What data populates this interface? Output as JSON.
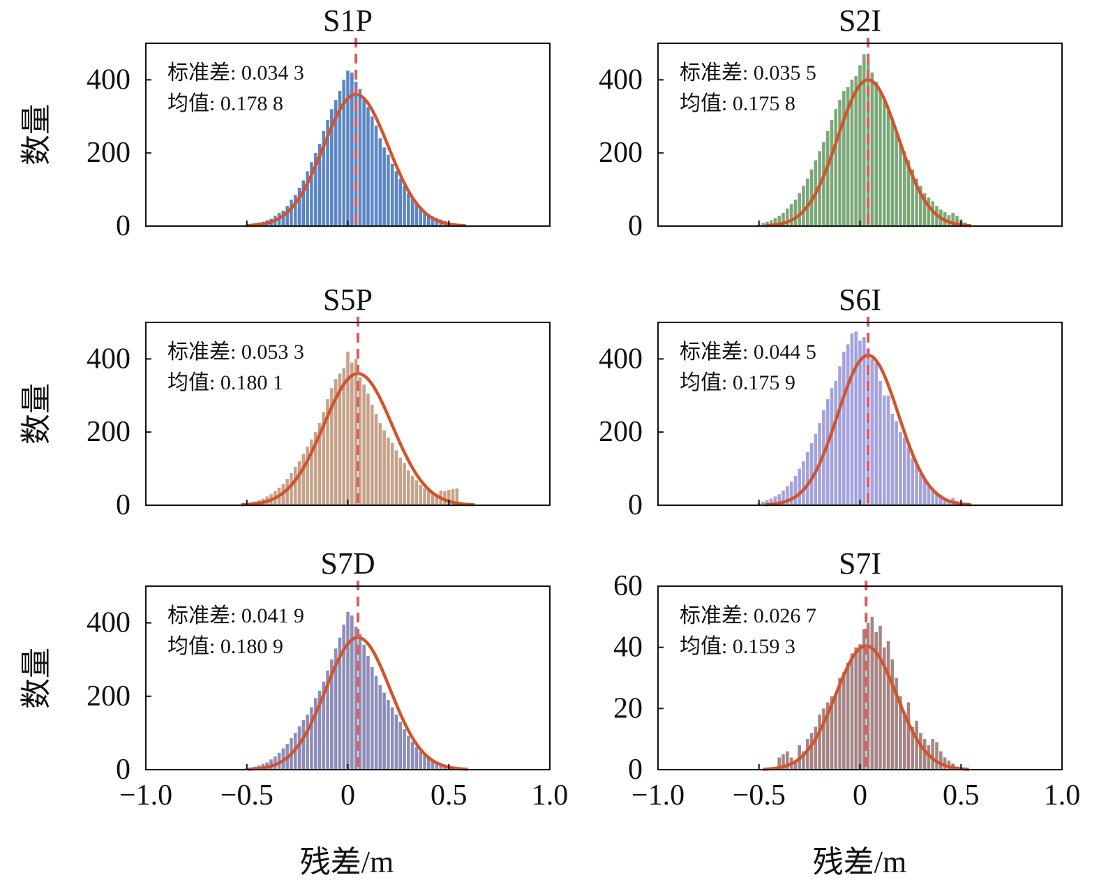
{
  "figure": {
    "ylabel": "数量",
    "xlabel": "残差/m"
  },
  "colors": {
    "fit_curve": "#d2542b",
    "mean_line": "#e05a5a",
    "axis": "#111111"
  },
  "chart_data": [
    {
      "type": "bar",
      "title": "S1P",
      "color": "#5b86c5",
      "xlim": [
        -1.0,
        1.0
      ],
      "ylim": [
        0,
        500
      ],
      "xticks": [
        "−1.0",
        "−0.5",
        "0",
        "0.5",
        "1.0"
      ],
      "yticks": [
        "0",
        "200",
        "400"
      ],
      "std_label": "标准差: 0.034 3",
      "mean_label": "均值: 0.178 8",
      "mean_x": 0.04,
      "fit": {
        "mu": 0.04,
        "sigma": 0.16,
        "peak": 360
      },
      "x": [
        -0.5,
        -0.48,
        -0.46,
        -0.44,
        -0.42,
        -0.4,
        -0.38,
        -0.36,
        -0.34,
        -0.32,
        -0.3,
        -0.28,
        -0.26,
        -0.24,
        -0.22,
        -0.2,
        -0.18,
        -0.16,
        -0.14,
        -0.12,
        -0.1,
        -0.08,
        -0.06,
        -0.04,
        -0.02,
        0,
        0.02,
        0.04,
        0.06,
        0.08,
        0.1,
        0.12,
        0.14,
        0.16,
        0.18,
        0.2,
        0.22,
        0.24,
        0.26,
        0.28,
        0.3,
        0.32,
        0.34,
        0.36,
        0.38,
        0.4,
        0.42,
        0.44,
        0.46,
        0.48,
        0.5,
        0.52,
        0.54
      ],
      "values": [
        3,
        6,
        8,
        10,
        12,
        16,
        20,
        28,
        36,
        42,
        55,
        72,
        85,
        105,
        125,
        150,
        175,
        200,
        225,
        260,
        290,
        320,
        345,
        370,
        400,
        425,
        420,
        395,
        375,
        345,
        325,
        300,
        275,
        240,
        215,
        195,
        170,
        150,
        130,
        110,
        90,
        75,
        62,
        50,
        40,
        32,
        26,
        22,
        18,
        14,
        10,
        6,
        3
      ]
    },
    {
      "type": "bar",
      "title": "S2I",
      "color": "#7ba878",
      "xlim": [
        -1.0,
        1.0
      ],
      "ylim": [
        0,
        500
      ],
      "xticks": [
        "−1.0",
        "−0.5",
        "0",
        "0.5",
        "1.0"
      ],
      "yticks": [
        "0",
        "200",
        "400"
      ],
      "std_label": "标准差: 0.035 5",
      "mean_label": "均值: 0.175 8",
      "mean_x": 0.04,
      "fit": {
        "mu": 0.04,
        "sigma": 0.15,
        "peak": 400
      },
      "x": [
        -0.5,
        -0.48,
        -0.46,
        -0.44,
        -0.42,
        -0.4,
        -0.38,
        -0.36,
        -0.34,
        -0.32,
        -0.3,
        -0.28,
        -0.26,
        -0.24,
        -0.22,
        -0.2,
        -0.18,
        -0.16,
        -0.14,
        -0.12,
        -0.1,
        -0.08,
        -0.06,
        -0.04,
        -0.02,
        0,
        0.02,
        0.04,
        0.06,
        0.08,
        0.1,
        0.12,
        0.14,
        0.16,
        0.18,
        0.2,
        0.22,
        0.24,
        0.26,
        0.28,
        0.3,
        0.32,
        0.34,
        0.36,
        0.38,
        0.4,
        0.42,
        0.44,
        0.46,
        0.48,
        0.5,
        0.52,
        0.54
      ],
      "values": [
        4,
        8,
        12,
        16,
        22,
        28,
        36,
        48,
        60,
        72,
        90,
        110,
        130,
        155,
        180,
        205,
        230,
        260,
        290,
        320,
        345,
        370,
        380,
        400,
        410,
        440,
        470,
        450,
        420,
        395,
        370,
        345,
        315,
        290,
        260,
        230,
        205,
        180,
        155,
        130,
        110,
        90,
        78,
        68,
        55,
        45,
        38,
        30,
        36,
        28,
        18,
        10,
        5
      ]
    },
    {
      "type": "bar",
      "title": "S5P",
      "color": "#c5a28a",
      "xlim": [
        -1.0,
        1.0
      ],
      "ylim": [
        0,
        500
      ],
      "xticks": [
        "−1.0",
        "−0.5",
        "0",
        "0.5",
        "1.0"
      ],
      "yticks": [
        "0",
        "200",
        "400"
      ],
      "std_label": "标准差: 0.053 3",
      "mean_label": "均值: 0.180 1",
      "mean_x": 0.05,
      "fit": {
        "mu": 0.05,
        "sigma": 0.17,
        "peak": 360
      },
      "x": [
        -0.5,
        -0.48,
        -0.46,
        -0.44,
        -0.42,
        -0.4,
        -0.38,
        -0.36,
        -0.34,
        -0.32,
        -0.3,
        -0.28,
        -0.26,
        -0.24,
        -0.22,
        -0.2,
        -0.18,
        -0.16,
        -0.14,
        -0.12,
        -0.1,
        -0.08,
        -0.06,
        -0.04,
        -0.02,
        0,
        0.02,
        0.04,
        0.06,
        0.08,
        0.1,
        0.12,
        0.14,
        0.16,
        0.18,
        0.2,
        0.22,
        0.24,
        0.26,
        0.28,
        0.3,
        0.32,
        0.34,
        0.36,
        0.38,
        0.4,
        0.42,
        0.44,
        0.46,
        0.48,
        0.5,
        0.52,
        0.54
      ],
      "values": [
        4,
        8,
        10,
        14,
        18,
        24,
        30,
        38,
        48,
        58,
        72,
        88,
        105,
        120,
        140,
        160,
        180,
        200,
        225,
        255,
        290,
        320,
        345,
        360,
        375,
        420,
        390,
        400,
        350,
        330,
        305,
        275,
        250,
        225,
        205,
        185,
        170,
        150,
        130,
        115,
        95,
        80,
        68,
        55,
        46,
        40,
        34,
        30,
        40,
        38,
        42,
        44,
        46
      ]
    },
    {
      "type": "bar",
      "title": "S6I",
      "color": "#a3a2dd",
      "xlim": [
        -1.0,
        1.0
      ],
      "ylim": [
        0,
        500
      ],
      "xticks": [
        "−1.0",
        "−0.5",
        "0",
        "0.5",
        "1.0"
      ],
      "yticks": [
        "0",
        "200",
        "400"
      ],
      "std_label": "标准差: 0.044 5",
      "mean_label": "均值: 0.175 9",
      "mean_x": 0.04,
      "fit": {
        "mu": 0.04,
        "sigma": 0.15,
        "peak": 410
      },
      "x": [
        -0.5,
        -0.48,
        -0.46,
        -0.44,
        -0.42,
        -0.4,
        -0.38,
        -0.36,
        -0.34,
        -0.32,
        -0.3,
        -0.28,
        -0.26,
        -0.24,
        -0.22,
        -0.2,
        -0.18,
        -0.16,
        -0.14,
        -0.12,
        -0.1,
        -0.08,
        -0.06,
        -0.04,
        -0.02,
        0,
        0.02,
        0.04,
        0.06,
        0.08,
        0.1,
        0.12,
        0.14,
        0.16,
        0.18,
        0.2,
        0.22,
        0.24,
        0.26,
        0.28,
        0.3,
        0.32,
        0.34,
        0.36,
        0.38,
        0.4,
        0.42,
        0.44,
        0.46,
        0.48,
        0.5,
        0.52,
        0.54
      ],
      "values": [
        6,
        10,
        14,
        18,
        24,
        30,
        40,
        52,
        64,
        80,
        100,
        120,
        145,
        170,
        195,
        225,
        260,
        290,
        320,
        340,
        380,
        420,
        440,
        470,
        475,
        450,
        460,
        430,
        400,
        390,
        340,
        300,
        300,
        250,
        230,
        200,
        185,
        160,
        130,
        110,
        85,
        70,
        55,
        45,
        35,
        28,
        18,
        14,
        20,
        12,
        8,
        5,
        3
      ]
    },
    {
      "type": "bar",
      "title": "S7D",
      "color": "#8c8db8",
      "xlim": [
        -1.0,
        1.0
      ],
      "ylim": [
        0,
        500
      ],
      "xticks": [
        "−1.0",
        "−0.5",
        "0",
        "0.5",
        "1.0"
      ],
      "yticks": [
        "0",
        "200",
        "400"
      ],
      "std_label": "标准差: 0.041 9",
      "mean_label": "均值: 0.180 9",
      "mean_x": 0.05,
      "fit": {
        "mu": 0.05,
        "sigma": 0.16,
        "peak": 360
      },
      "x": [
        -0.5,
        -0.48,
        -0.46,
        -0.44,
        -0.42,
        -0.4,
        -0.38,
        -0.36,
        -0.34,
        -0.32,
        -0.3,
        -0.28,
        -0.26,
        -0.24,
        -0.22,
        -0.2,
        -0.18,
        -0.16,
        -0.14,
        -0.12,
        -0.1,
        -0.08,
        -0.06,
        -0.04,
        -0.02,
        0,
        0.02,
        0.04,
        0.06,
        0.08,
        0.1,
        0.12,
        0.14,
        0.16,
        0.18,
        0.2,
        0.22,
        0.24,
        0.26,
        0.28,
        0.3,
        0.32,
        0.34,
        0.36,
        0.38,
        0.4,
        0.42,
        0.44,
        0.46,
        0.48,
        0.5,
        0.52,
        0.54
      ],
      "values": [
        4,
        6,
        8,
        12,
        16,
        20,
        28,
        36,
        46,
        58,
        70,
        86,
        100,
        118,
        135,
        150,
        170,
        195,
        215,
        240,
        270,
        300,
        330,
        360,
        395,
        430,
        420,
        390,
        370,
        340,
        310,
        280,
        255,
        230,
        210,
        190,
        170,
        150,
        130,
        110,
        92,
        76,
        62,
        50,
        40,
        32,
        26,
        22,
        18,
        14,
        10,
        6,
        4
      ]
    },
    {
      "type": "bar",
      "title": "S7I",
      "color": "#a68484",
      "xlim": [
        -1.0,
        1.0
      ],
      "ylim": [
        0,
        60
      ],
      "xticks": [
        "−1.0",
        "−0.5",
        "0",
        "0.5",
        "1.0"
      ],
      "yticks": [
        "0",
        "20",
        "40",
        "60"
      ],
      "std_label": "标准差: 0.026 7",
      "mean_label": "均值: 0.159 3",
      "mean_x": 0.03,
      "fit": {
        "mu": 0.03,
        "sigma": 0.15,
        "peak": 40.5
      },
      "x": [
        -0.4,
        -0.38,
        -0.36,
        -0.34,
        -0.32,
        -0.3,
        -0.28,
        -0.26,
        -0.24,
        -0.22,
        -0.2,
        -0.18,
        -0.16,
        -0.14,
        -0.12,
        -0.1,
        -0.08,
        -0.06,
        -0.04,
        -0.02,
        0,
        0.02,
        0.04,
        0.06,
        0.08,
        0.1,
        0.12,
        0.14,
        0.16,
        0.18,
        0.2,
        0.22,
        0.24,
        0.26,
        0.28,
        0.3,
        0.32,
        0.34,
        0.36,
        0.38,
        0.4,
        0.42,
        0.44,
        0.46,
        0.48
      ],
      "values": [
        4,
        5,
        6,
        4,
        3,
        8,
        6,
        10,
        12,
        14,
        18,
        20,
        22,
        24,
        25,
        30,
        32,
        35,
        38,
        40,
        41,
        46,
        48,
        50,
        45,
        47,
        40,
        42,
        36,
        30,
        24,
        18,
        22,
        14,
        16,
        12,
        10,
        8,
        10,
        9,
        6,
        4,
        3,
        2,
        1
      ]
    }
  ]
}
